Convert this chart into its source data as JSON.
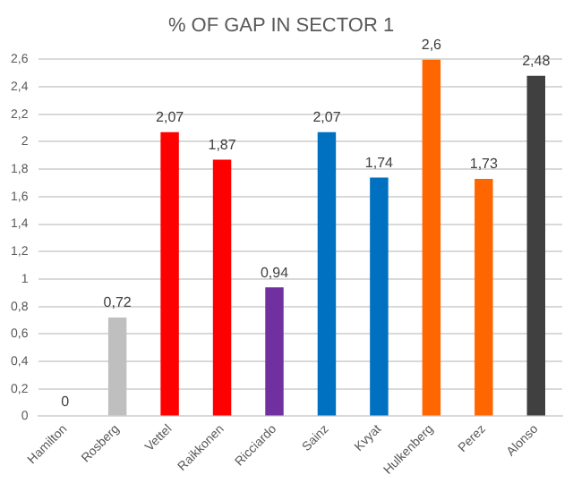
{
  "chart_data": {
    "type": "bar",
    "title": "% OF GAP IN SECTOR 1",
    "categories": [
      "Hamilton",
      "Rosberg",
      "Vettel",
      "Raikkonen",
      "Ricciardo",
      "Sainz",
      "Kvyat",
      "Hulkenberg",
      "Perez",
      "Alonso"
    ],
    "values": [
      0,
      0.72,
      2.07,
      1.87,
      0.94,
      2.07,
      1.74,
      2.6,
      1.73,
      2.48
    ],
    "colors": [
      "#bfbfbf",
      "#bfbfbf",
      "#ff0000",
      "#ff0000",
      "#7030a0",
      "#0070c0",
      "#0070c0",
      "#ff6600",
      "#ff6600",
      "#404040"
    ],
    "value_labels": [
      "0",
      "0,72",
      "2,07",
      "1,87",
      "0,94",
      "2,07",
      "1,74",
      "2,6",
      "1,73",
      "2,48"
    ],
    "ylim": [
      0,
      2.6
    ],
    "yticks": [
      {
        "value": 0,
        "label": "0"
      },
      {
        "value": 0.2,
        "label": "0,2"
      },
      {
        "value": 0.4,
        "label": "0,4"
      },
      {
        "value": 0.6,
        "label": "0,6"
      },
      {
        "value": 0.8,
        "label": "0,8"
      },
      {
        "value": 1,
        "label": "1"
      },
      {
        "value": 1.2,
        "label": "1,2"
      },
      {
        "value": 1.4,
        "label": "1,4"
      },
      {
        "value": 1.6,
        "label": "1,6"
      },
      {
        "value": 1.8,
        "label": "1,8"
      },
      {
        "value": 2,
        "label": "2"
      },
      {
        "value": 2.2,
        "label": "2,2"
      },
      {
        "value": 2.4,
        "label": "2,4"
      },
      {
        "value": 2.6,
        "label": "2,6"
      }
    ],
    "grid": "y"
  }
}
